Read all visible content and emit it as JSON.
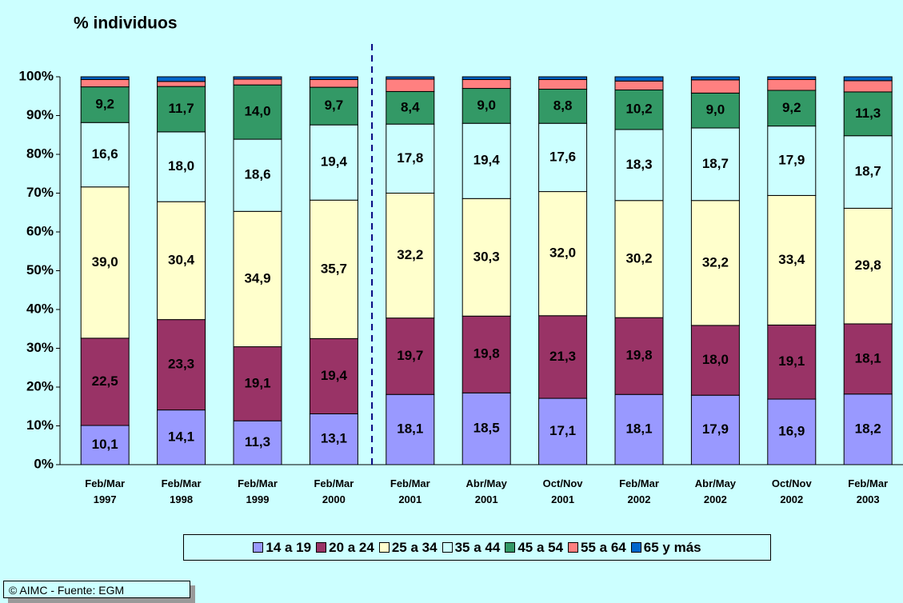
{
  "chart_data": {
    "type": "stacked_bar",
    "title": "% individuos",
    "categories": [
      "Feb/Mar 1997",
      "Feb/Mar 1998",
      "Feb/Mar 1999",
      "Feb/Mar 2000",
      "Feb/Mar 2001",
      "Abr/May 2001",
      "Oct/Nov 2001",
      "Feb/Mar 2002",
      "Abr/May 2002",
      "Oct/Nov 2002",
      "Feb/Mar 2003"
    ],
    "series": [
      {
        "name": "14 a 19",
        "color": "#9999ff",
        "values": [
          10.1,
          14.1,
          11.3,
          13.1,
          18.1,
          18.5,
          17.1,
          18.1,
          17.9,
          16.9,
          18.2
        ],
        "value_labels": [
          "10,1",
          "14,1",
          "11,3",
          "13,1",
          "18,1",
          "18,5",
          "17,1",
          "18,1",
          "17,9",
          "16,9",
          "18,2"
        ]
      },
      {
        "name": "20 a 24",
        "color": "#993366",
        "values": [
          22.5,
          23.3,
          19.1,
          19.4,
          19.7,
          19.8,
          21.3,
          19.8,
          18.0,
          19.1,
          18.1
        ],
        "value_labels": [
          "22,5",
          "23,3",
          "19,1",
          "19,4",
          "19,7",
          "19,8",
          "21,3",
          "19,8",
          "18,0",
          "19,1",
          "18,1"
        ]
      },
      {
        "name": "25 a 34",
        "color": "#ffffcc",
        "values": [
          39.0,
          30.4,
          34.9,
          35.7,
          32.2,
          30.3,
          32.0,
          30.2,
          32.2,
          33.4,
          29.8
        ],
        "value_labels": [
          "39,0",
          "30,4",
          "34,9",
          "35,7",
          "32,2",
          "30,3",
          "32,0",
          "30,2",
          "32,2",
          "33,4",
          "29,8"
        ]
      },
      {
        "name": "35 a 44",
        "color": "#ccffff",
        "values": [
          16.6,
          18.0,
          18.6,
          19.4,
          17.8,
          19.4,
          17.6,
          18.3,
          18.7,
          17.9,
          18.7
        ],
        "value_labels": [
          "16,6",
          "18,0",
          "18,6",
          "19,4",
          "17,8",
          "19,4",
          "17,6",
          "18,3",
          "18,7",
          "17,9",
          "18,7"
        ]
      },
      {
        "name": "45 a 54",
        "color": "#339966",
        "values": [
          9.2,
          11.7,
          14.0,
          9.7,
          8.4,
          9.0,
          8.8,
          10.2,
          9.0,
          9.2,
          11.3
        ],
        "value_labels": [
          "9,2",
          "11,7",
          "14,0",
          "9,7",
          "8,4",
          "9,0",
          "8,8",
          "10,2",
          "9,0",
          "9,2",
          "11,3"
        ]
      },
      {
        "name": "55 a 64",
        "color": "#ff8080",
        "values": [
          1.9,
          1.3,
          1.5,
          2.0,
          3.2,
          2.3,
          2.5,
          2.3,
          3.4,
          2.8,
          2.9
        ]
      },
      {
        "name": "65 y más",
        "color": "#0066cc",
        "values": [
          0.7,
          1.2,
          0.6,
          0.7,
          0.6,
          0.7,
          0.7,
          1.1,
          0.8,
          0.7,
          1.0
        ]
      }
    ],
    "ylim": [
      0,
      100
    ],
    "yticks": [
      {
        "value": 0,
        "label": "0%"
      },
      {
        "value": 10,
        "label": "10%"
      },
      {
        "value": 20,
        "label": "20%"
      },
      {
        "value": 30,
        "label": "30%"
      },
      {
        "value": 40,
        "label": "40%"
      },
      {
        "value": 50,
        "label": "50%"
      },
      {
        "value": 60,
        "label": "60%"
      },
      {
        "value": 70,
        "label": "70%"
      },
      {
        "value": 80,
        "label": "80%"
      },
      {
        "value": 90,
        "label": "90%"
      },
      {
        "value": 100,
        "label": "100%"
      }
    ],
    "grid": false,
    "legend": "bottom",
    "footer": "© AIMC - Fuente: EGM"
  }
}
